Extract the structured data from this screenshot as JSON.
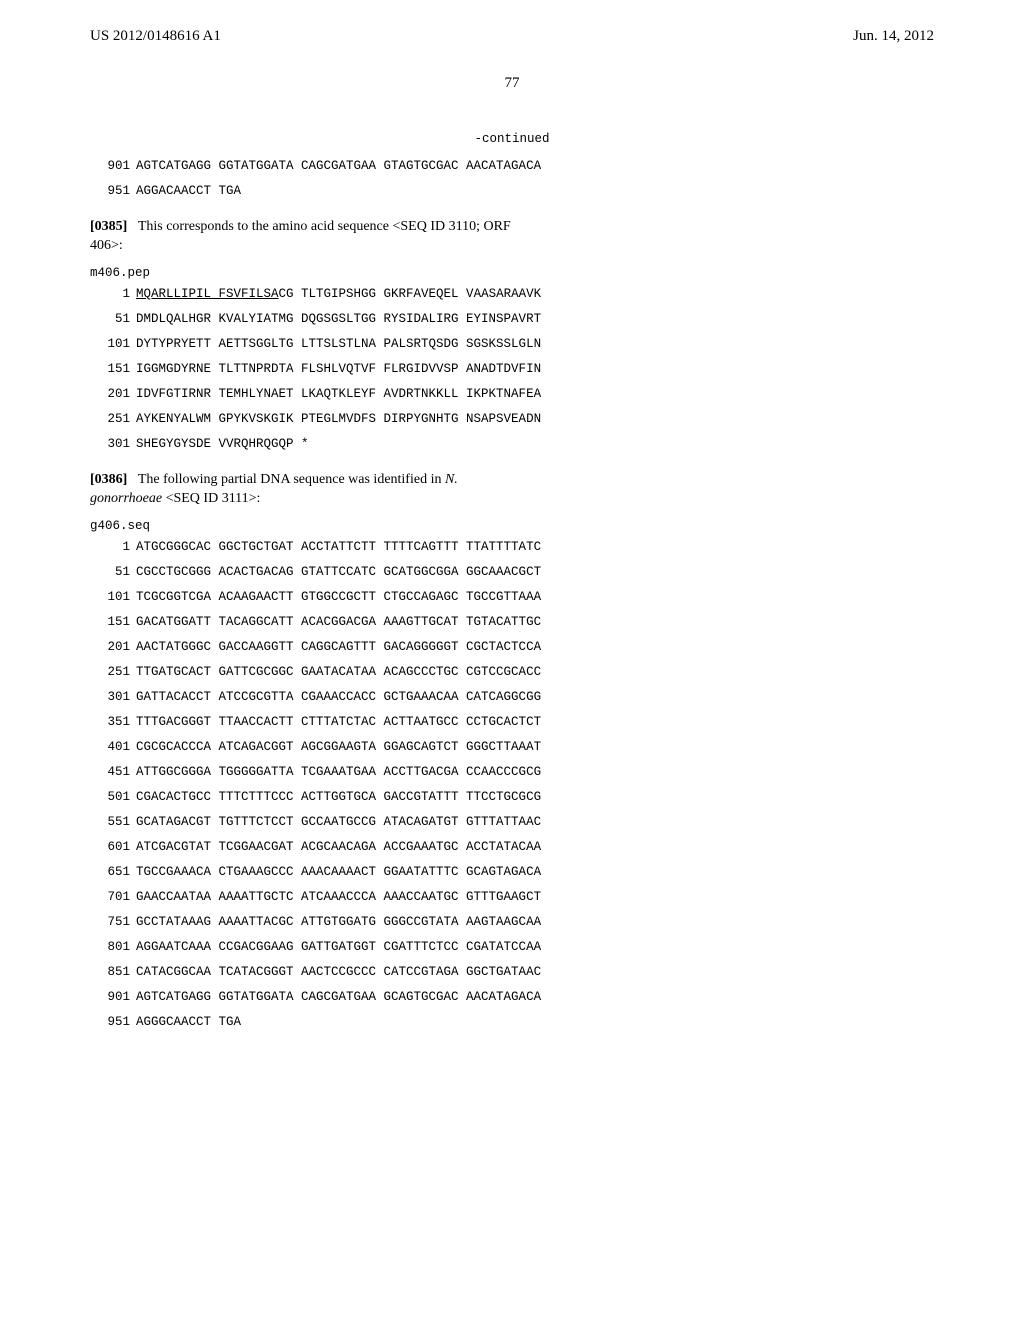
{
  "header": {
    "publication": "US 2012/0148616 A1",
    "date": "Jun. 14, 2012",
    "page_number": "77"
  },
  "continued_label": "-continued",
  "seq_block_1": {
    "lines": [
      {
        "num": "901",
        "text": "AGTCATGAGG GGTATGGATA CAGCGATGAA GTAGTGCGAC AACATAGACA"
      },
      {
        "num": "951",
        "text": "AGGACAACCT TGA"
      }
    ]
  },
  "para_1": {
    "num": "[0385]",
    "text_before": "This corresponds to the amino acid sequence <SEQ ID 3110; ORF 406>:"
  },
  "seq_block_2": {
    "header": "m406.pep",
    "lines": [
      {
        "num": "1",
        "underlined": "MQARLLIPIL FSVFILSA",
        "rest": "CG TLTGIPSHGG GKRFAVEQEL VAASARAAVK"
      },
      {
        "num": "51",
        "text": "DMDLQALHGR KVALYIATMG DQGSGSLTGG RYSIDALIRG EYINSPAVRT"
      },
      {
        "num": "101",
        "text": "DYTYPRYETT AETTSGGLTG LTTSLSTLNA PALSRTQSDG SGSKSSLGLN"
      },
      {
        "num": "151",
        "text": "IGGMGDYRNE TLTTNPRDTA FLSHLVQTVF FLRGIDVVSP ANADTDVFIN"
      },
      {
        "num": "201",
        "text": "IDVFGTIRNR TEMHLYNAET LKAQTKLEYF AVDRTNKKLL IKPKTNAFEA"
      },
      {
        "num": "251",
        "text": "AYKENYALWM GPYKVSKGIK PTEGLMVDFS DIRPYGNHTG NSAPSVEADN"
      },
      {
        "num": "301",
        "text": "SHEGYGYSDE VVRQHRQGQP *"
      }
    ]
  },
  "para_2": {
    "num": "[0386]",
    "text_before": "The following partial DNA sequence was identified in ",
    "italic": "N. gonorrhoeae",
    "text_after": " <SEQ ID 3111>:"
  },
  "seq_block_3": {
    "header": "g406.seq",
    "lines": [
      {
        "num": "1",
        "text": "ATGCGGGCAC GGCTGCTGAT ACCTATTCTT TTTTCAGTTT TTATTTTATC"
      },
      {
        "num": "51",
        "text": "CGCCTGCGGG ACACTGACAG GTATTCCATC GCATGGCGGA GGCAAACGCT"
      },
      {
        "num": "101",
        "text": "TCGCGGTCGA ACAAGAACTT GTGGCCGCTT CTGCCAGAGC TGCCGTTAAA"
      },
      {
        "num": "151",
        "text": "GACATGGATT TACAGGCATT ACACGGACGA AAAGTTGCAT TGTACATTGC"
      },
      {
        "num": "201",
        "text": "AACTATGGGC GACCAAGGTT CAGGCAGTTT GACAGGGGGT CGCTACTCCA"
      },
      {
        "num": "251",
        "text": "TTGATGCACT GATTCGCGGC GAATACATAA ACAGCCCTGC CGTCCGCACC"
      },
      {
        "num": "301",
        "text": "GATTACACCT ATCCGCGTTA CGAAACCACC GCTGAAACAA CATCAGGCGG"
      },
      {
        "num": "351",
        "text": "TTTGACGGGT TTAACCACTT CTTTATCTAC ACTTAATGCC CCTGCACTCT"
      },
      {
        "num": "401",
        "text": "CGCGCACCCA ATCAGACGGT AGCGGAAGTA GGAGCAGTCT GGGCTTAAAT"
      },
      {
        "num": "451",
        "text": "ATTGGCGGGA TGGGGGATTA TCGAAATGAA ACCTTGACGA CCAACCCGCG"
      },
      {
        "num": "501",
        "text": "CGACACTGCC TTTCTTTCCC ACTTGGTGCA GACCGTATTT TTCCTGCGCG"
      },
      {
        "num": "551",
        "text": "GCATAGACGT TGTTTCTCCT GCCAATGCCG ATACAGATGT GTTTATTAAC"
      },
      {
        "num": "601",
        "text": "ATCGACGTAT TCGGAACGAT ACGCAACAGA ACCGAAATGC ACCTATACAA"
      },
      {
        "num": "651",
        "text": "TGCCGAAACA CTGAAAGCCC AAACAAAACT GGAATATTTC GCAGTAGACA"
      },
      {
        "num": "701",
        "text": "GAACCAATAA AAAATTGCTC ATCAAACCCA AAACCAATGC GTTTGAAGCT"
      },
      {
        "num": "751",
        "text": "GCCTATAAAG AAAATTACGC ATTGTGGATG GGGCCGTATA AAGTAAGCAA"
      },
      {
        "num": "801",
        "text": "AGGAATCAAA CCGACGGAAG GATTGATGGT CGATTTCTCC CGATATCCAA"
      },
      {
        "num": "851",
        "text": "CATACGGCAA TCATACGGGT AACTCCGCCC CATCCGTAGA GGCTGATAAC"
      },
      {
        "num": "901",
        "text": "AGTCATGAGG GGTATGGATA CAGCGATGAA GCAGTGCGAC AACATAGACA"
      },
      {
        "num": "951",
        "text": "AGGGCAACCT TGA"
      }
    ]
  }
}
